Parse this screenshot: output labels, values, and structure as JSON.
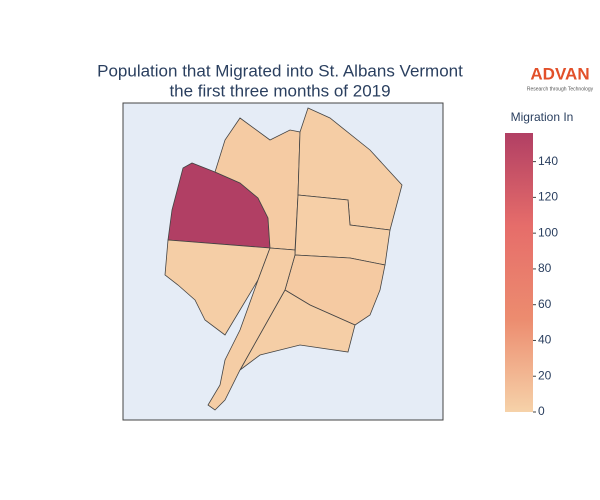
{
  "chart_data": {
    "type": "choropleth",
    "title": "Population that Migrated into St. Albans Vermont",
    "subtitle": "the first three months of 2019",
    "logo": "ADVAN",
    "logo_tagline": "Research through Technology",
    "colorbar_title": "Migration In",
    "values": [
      156,
      3,
      5,
      4,
      2,
      6,
      3,
      4
    ],
    "clim": [
      0,
      156
    ],
    "colorbar_ticks": [
      0,
      20,
      40,
      60,
      80,
      100,
      120,
      140
    ],
    "colorscale": [
      "#f6d2a9",
      "#ec8c6f",
      "#e66d6a",
      "#b13f64"
    ]
  }
}
